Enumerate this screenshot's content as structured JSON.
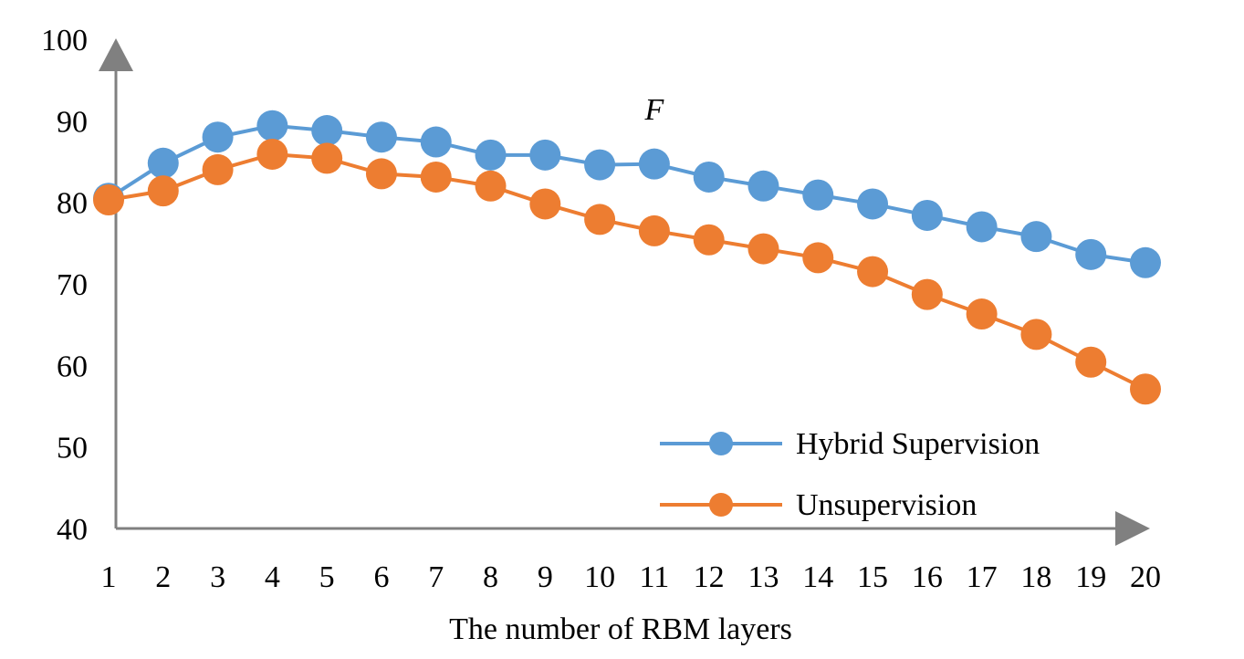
{
  "chart_data": {
    "type": "line",
    "title": "",
    "xlabel": "The number of RBM layers",
    "ylabel": "",
    "x": [
      1,
      2,
      3,
      4,
      5,
      6,
      7,
      8,
      9,
      10,
      11,
      12,
      13,
      14,
      15,
      16,
      17,
      18,
      19,
      20
    ],
    "yticks": [
      40,
      50,
      60,
      70,
      80,
      90,
      100
    ],
    "ylim": [
      40,
      100
    ],
    "grid": false,
    "legend_position": "bottom-right",
    "annotation": {
      "text": "F",
      "x": 11,
      "y": 91.5
    },
    "series": [
      {
        "name": "Hybrid Supervision",
        "color": "#5B9BD5",
        "values": [
          80.5,
          84.8,
          88.0,
          89.4,
          88.8,
          88.0,
          87.4,
          85.8,
          85.8,
          84.6,
          84.7,
          83.1,
          82.0,
          80.9,
          79.8,
          78.4,
          77.0,
          75.8,
          73.6,
          72.6
        ]
      },
      {
        "name": "Unsupervision",
        "color": "#ED7D31",
        "values": [
          80.3,
          81.4,
          84.0,
          85.9,
          85.4,
          83.5,
          83.1,
          82.0,
          79.8,
          77.9,
          76.5,
          75.4,
          74.3,
          73.2,
          71.5,
          68.7,
          66.3,
          63.8,
          60.4,
          57.1
        ]
      }
    ]
  }
}
